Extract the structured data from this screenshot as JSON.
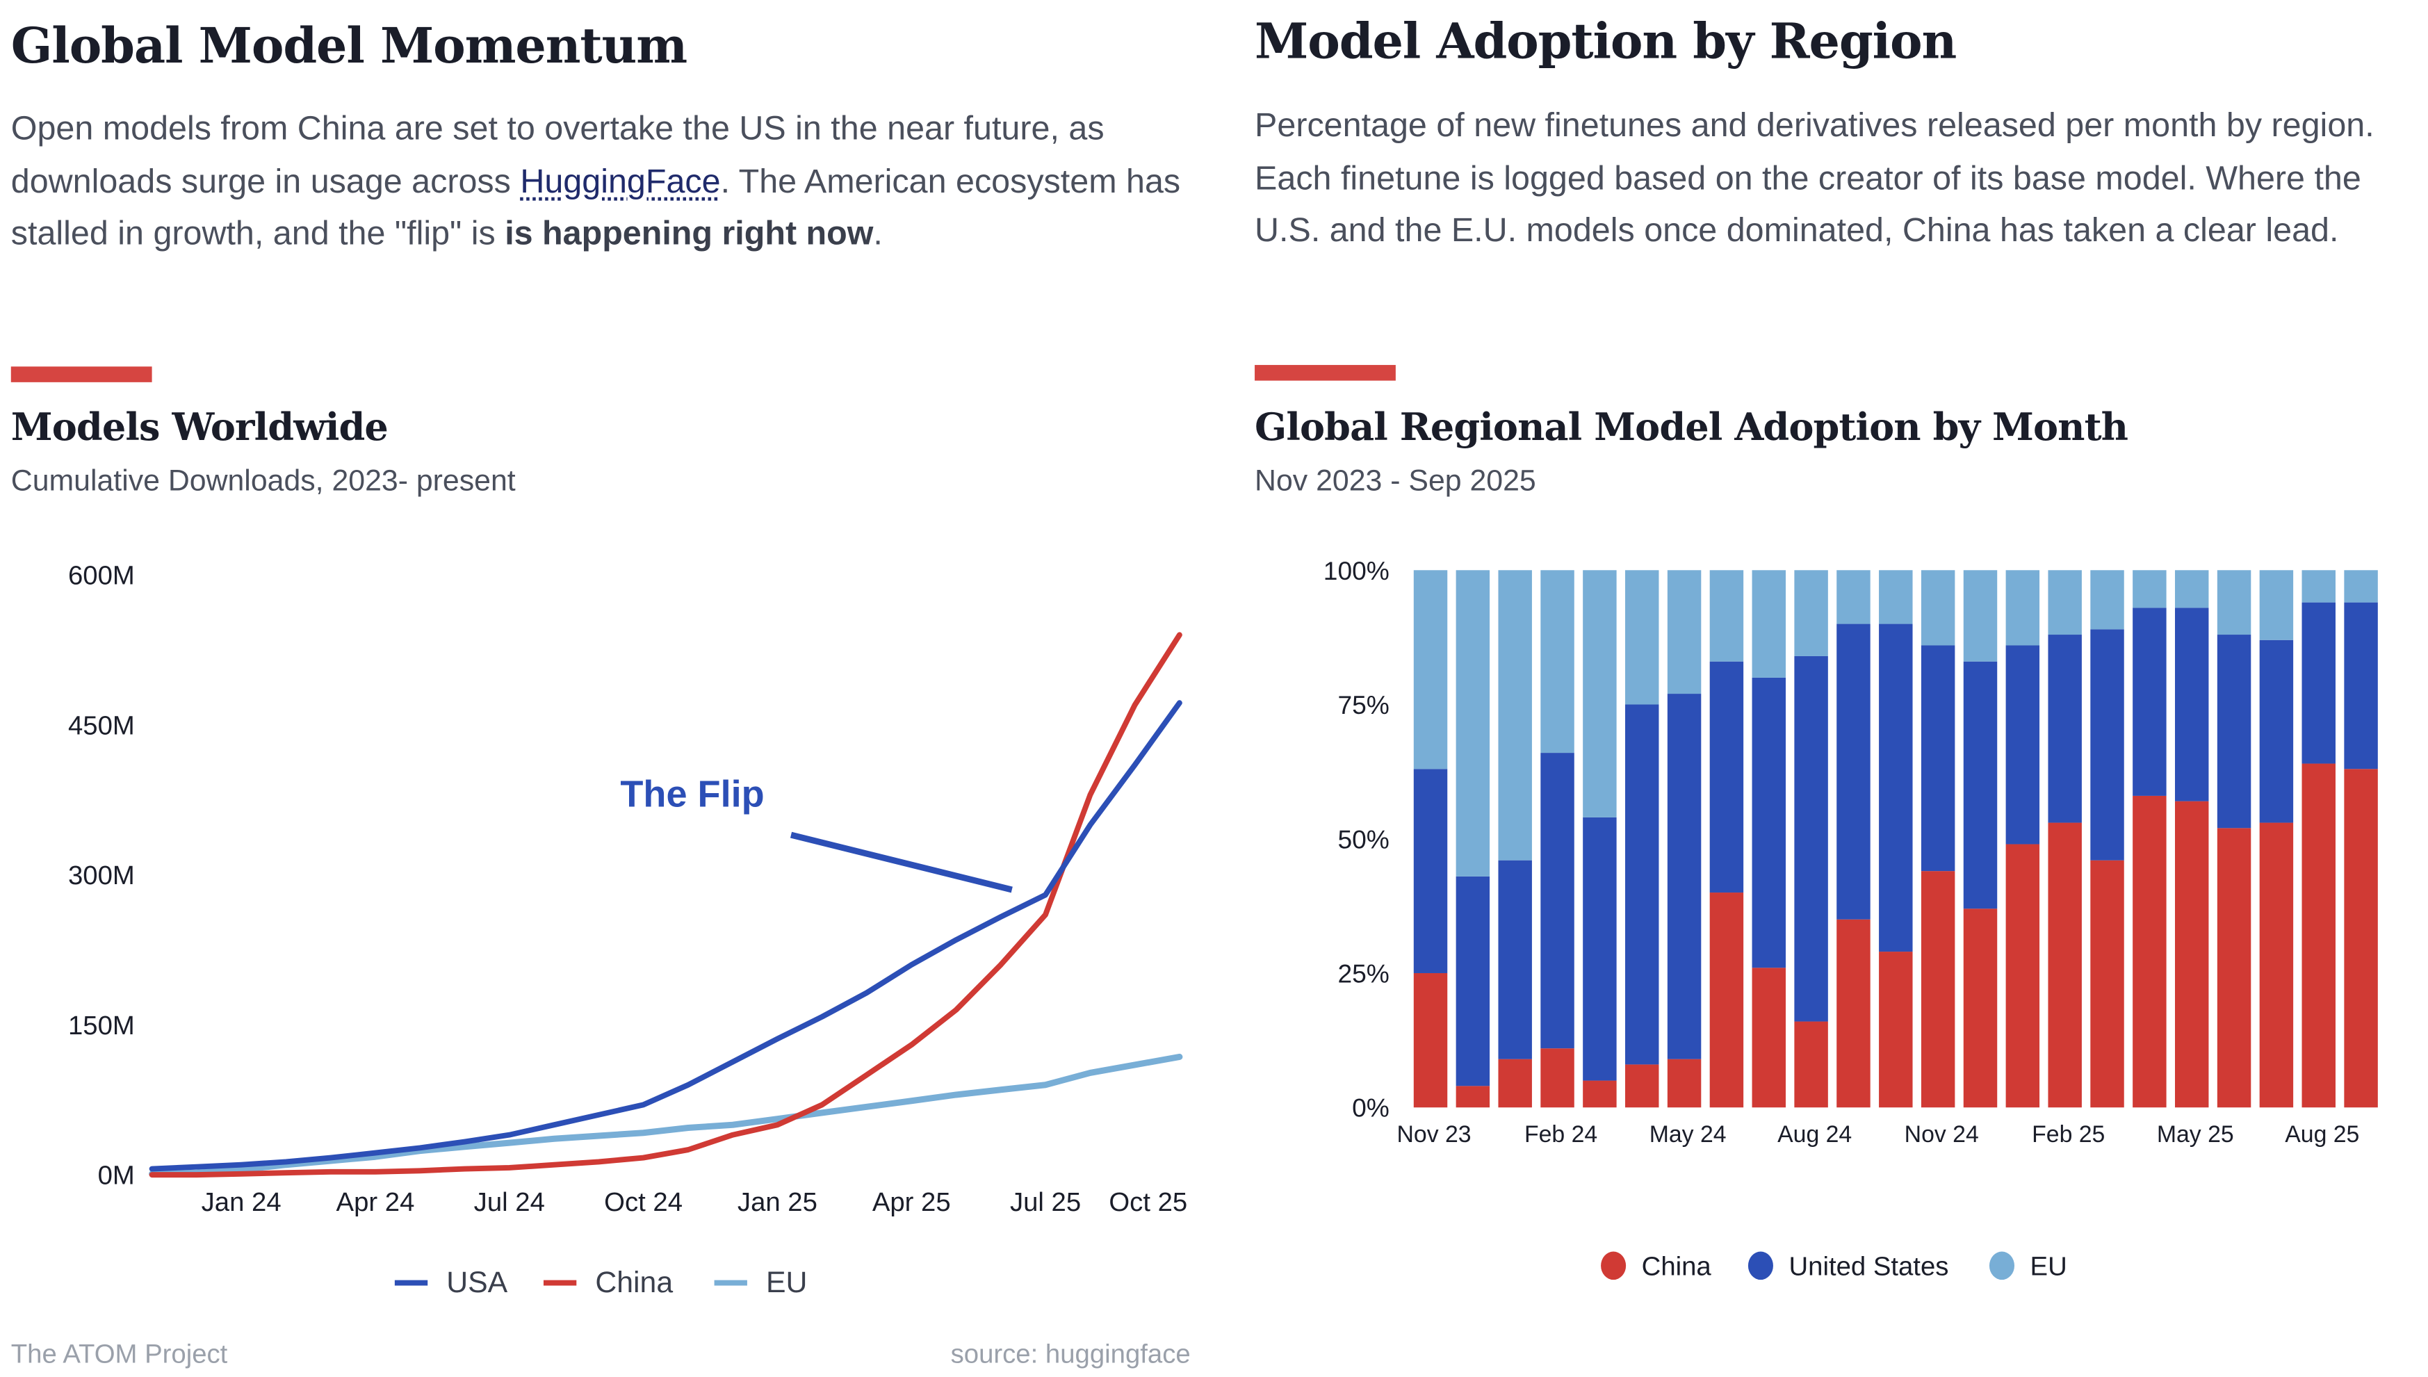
{
  "left": {
    "title": "Global Model Momentum",
    "paragraph": {
      "part1": "Open models from China are set to overtake the US in the near future, as downloads surge in usage across ",
      "link": "HuggingFace",
      "part2": ". The American ecosystem has stalled in growth, and the \"flip\" is ",
      "bold": "is happening right now",
      "part3": "."
    },
    "chart_title": "Models Worldwide",
    "chart_subtitle": "Cumulative Downloads, 2023- present",
    "footer_left": "The ATOM Project",
    "footer_right": "source: huggingface"
  },
  "right": {
    "title": "Model Adoption by Region",
    "paragraph": "Percentage of new finetunes and derivatives released per month by region. Each finetune is logged based on the creator of its base model. Where the U.S. and the E.U. models once dominated, China has taken a clear lead.",
    "chart_title": "Global Regional Model Adoption by Month",
    "chart_subtitle": "Nov 2023 - Sep 2025"
  },
  "colors": {
    "china": "#d03a34",
    "usa": "#2c4fb6",
    "eu": "#78aed6",
    "accent": "#d64541"
  },
  "chart_data": [
    {
      "type": "line",
      "title": "Models Worldwide",
      "subtitle": "Cumulative Downloads, 2023- present",
      "x": [
        "Nov 23",
        "Dec 23",
        "Jan 24",
        "Feb 24",
        "Mar 24",
        "Apr 24",
        "May 24",
        "Jun 24",
        "Jul 24",
        "Aug 24",
        "Sep 24",
        "Oct 24",
        "Nov 24",
        "Dec 24",
        "Jan 25",
        "Feb 25",
        "Mar 25",
        "Apr 25",
        "May 25",
        "Jun 25",
        "Jul 25",
        "Aug 25",
        "Sep 25",
        "Oct 25"
      ],
      "x_ticks": [
        "Jan 24",
        "Apr 24",
        "Jul 24",
        "Oct 24",
        "Jan 25",
        "Apr 25",
        "Jul 25",
        "Oct 25"
      ],
      "y_ticks": [
        "0M",
        "150M",
        "300M",
        "450M",
        "600M"
      ],
      "ylim": [
        0,
        600
      ],
      "y_unit": "M",
      "grid": false,
      "legend": "bottom",
      "annotation": "The Flip",
      "series": [
        {
          "name": "USA",
          "color": "#2c4fb6",
          "values": [
            6,
            8,
            10,
            13,
            17,
            22,
            27,
            33,
            40,
            50,
            60,
            70,
            90,
            113,
            136,
            158,
            182,
            210,
            235,
            258,
            280,
            350,
            410,
            472
          ]
        },
        {
          "name": "China",
          "color": "#d03a34",
          "values": [
            0,
            0,
            1,
            2,
            3,
            3,
            4,
            6,
            7,
            10,
            13,
            17,
            25,
            40,
            50,
            70,
            100,
            130,
            165,
            210,
            260,
            380,
            470,
            540
          ]
        },
        {
          "name": "EU",
          "color": "#78aed6",
          "values": [
            1,
            2,
            5,
            10,
            14,
            18,
            24,
            28,
            32,
            36,
            39,
            42,
            47,
            50,
            56,
            62,
            68,
            74,
            80,
            85,
            90,
            102,
            110,
            118
          ]
        }
      ]
    },
    {
      "type": "bar",
      "stacked": true,
      "title": "Global Regional Model Adoption by Month",
      "subtitle": "Nov 2023 - Sep 2025",
      "categories": [
        "Nov 23",
        "Dec 23",
        "Jan 24",
        "Feb 24",
        "Mar 24",
        "Apr 24",
        "May 24",
        "Jun 24",
        "Jul 24",
        "Aug 24",
        "Sep 24",
        "Oct 24",
        "Nov 24",
        "Dec 24",
        "Jan 25",
        "Feb 25",
        "Mar 25",
        "Apr 25",
        "May 25",
        "Jun 25",
        "Jul 25",
        "Aug 25",
        "Sep 25"
      ],
      "x_ticks": [
        "Nov 23",
        "Feb 24",
        "May 24",
        "Aug 24",
        "Nov 24",
        "Feb 25",
        "May 25",
        "Aug 25"
      ],
      "y_ticks": [
        "0%",
        "25%",
        "50%",
        "75%",
        "100%"
      ],
      "ylim": [
        0,
        100
      ],
      "legend": "bottom",
      "series": [
        {
          "name": "China",
          "color": "#d03a34",
          "values": [
            25,
            4,
            9,
            11,
            5,
            8,
            9,
            40,
            26,
            16,
            35,
            29,
            44,
            37,
            49,
            53,
            46,
            58,
            57,
            52,
            53,
            64,
            63
          ]
        },
        {
          "name": "United States",
          "color": "#2c4fb6",
          "values": [
            38,
            39,
            37,
            55,
            49,
            67,
            68,
            43,
            54,
            68,
            55,
            61,
            42,
            46,
            37,
            35,
            43,
            35,
            36,
            36,
            34,
            30,
            31
          ]
        },
        {
          "name": "EU",
          "color": "#78aed6",
          "values": [
            37,
            57,
            54,
            34,
            46,
            25,
            23,
            17,
            20,
            16,
            10,
            10,
            14,
            17,
            14,
            12,
            11,
            7,
            7,
            12,
            13,
            6,
            6
          ]
        }
      ]
    }
  ]
}
